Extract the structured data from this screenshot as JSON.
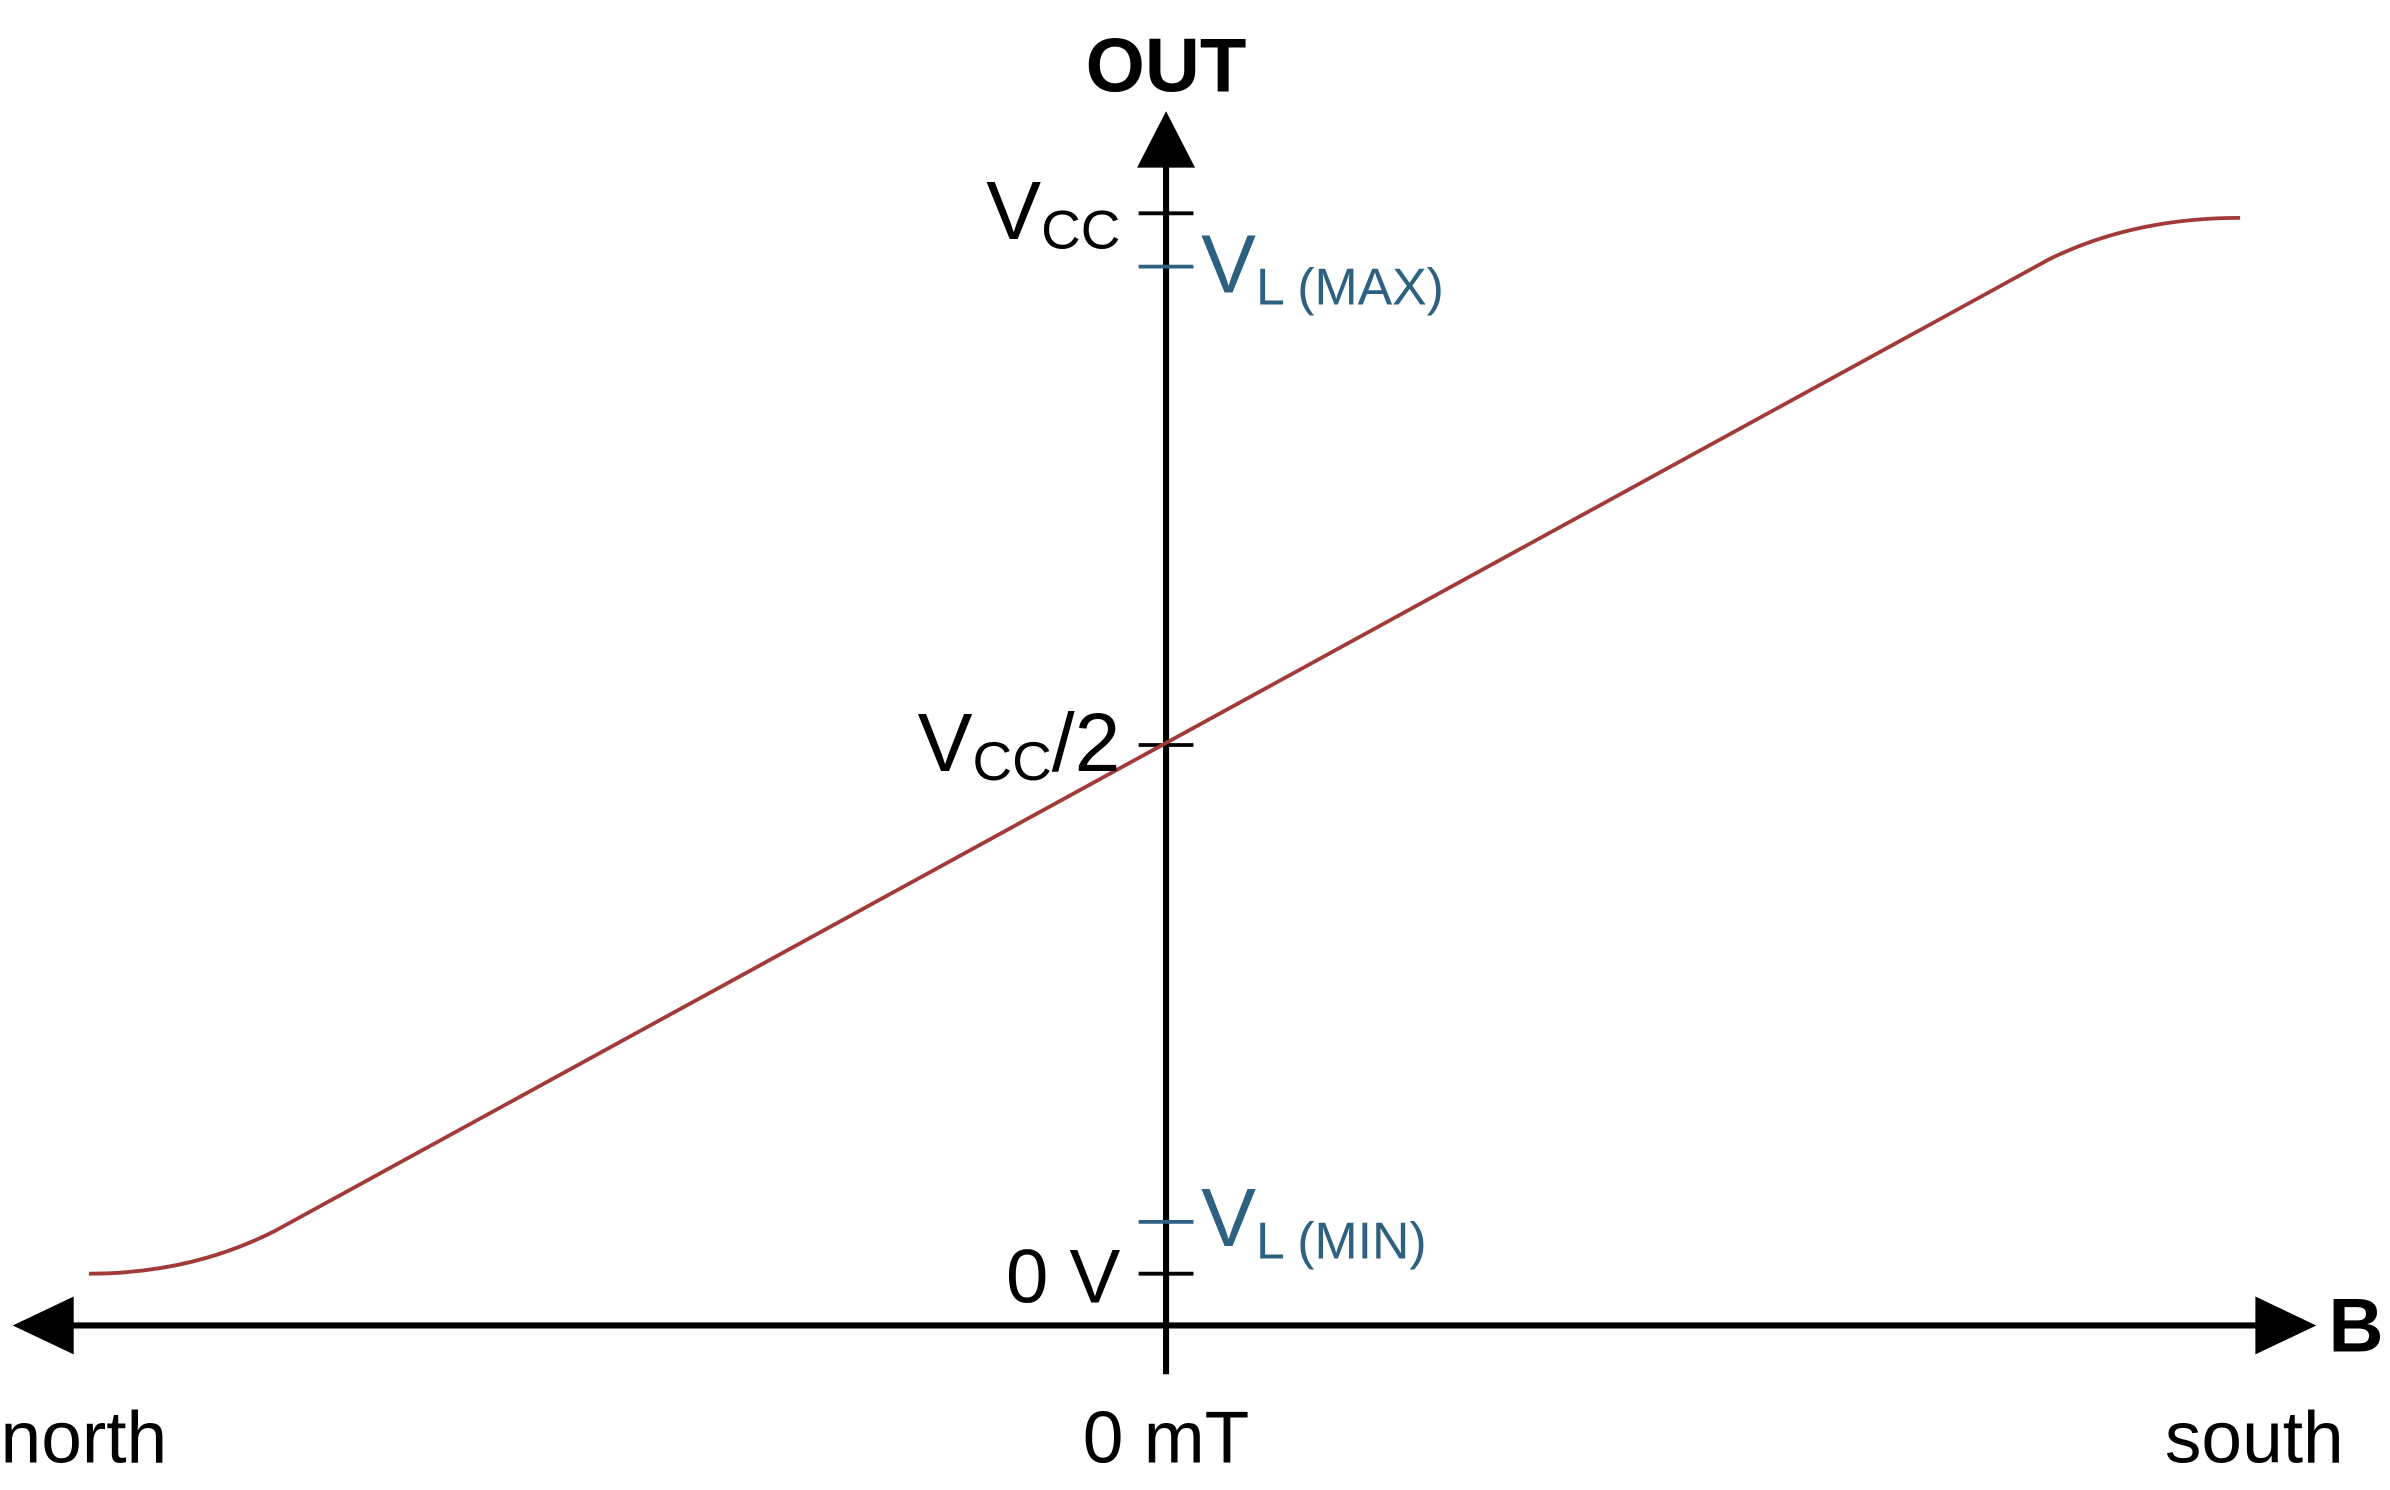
{
  "axes": {
    "y_label": "OUT",
    "x_label": "B",
    "x_left": "north",
    "x_center": "0 mT",
    "x_right": "south"
  },
  "levels": {
    "vcc": {
      "main": "V",
      "sub": "CC"
    },
    "vl_max": {
      "main": "V",
      "sub": "L (MAX)"
    },
    "vcc_half": {
      "main": "V",
      "sub": "CC",
      "suffix": "/2"
    },
    "vl_min": {
      "main": "V",
      "sub": "L (MIN)"
    },
    "zero": "0 V"
  }
}
